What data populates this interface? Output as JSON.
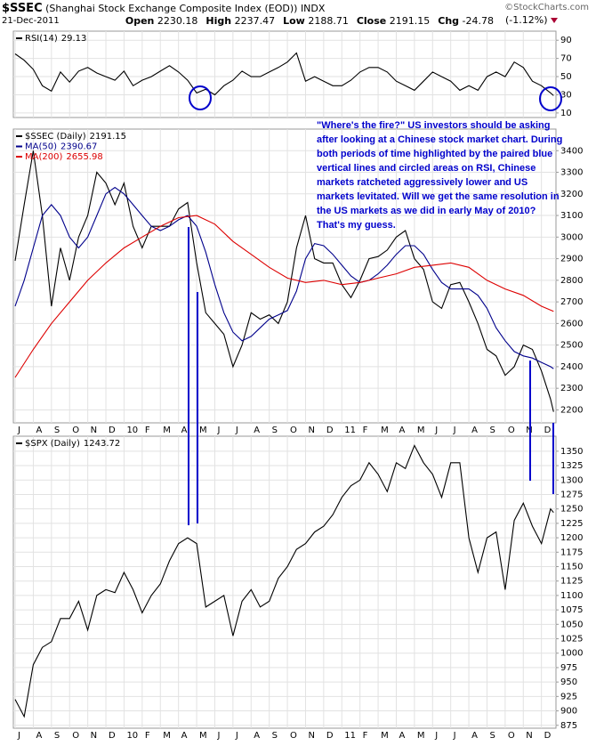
{
  "header": {
    "symbol": "$SSEC",
    "description": "(Shanghai Stock Exchange Composite Index (EOD))",
    "exchange": "INDX",
    "date": "21-Dec-2011",
    "source": "©StockCharts.com",
    "quote": [
      {
        "label": "Open",
        "value": 2230.18
      },
      {
        "label": "High",
        "value": 2237.47
      },
      {
        "label": "Low",
        "value": 2188.71
      },
      {
        "label": "Close",
        "value": 2191.15
      },
      {
        "label": "Chg",
        "value": -24.78
      }
    ],
    "change_percent": "(-1.12%)"
  },
  "chart_data": [
    {
      "type": "line",
      "xlim": [
        -0.1,
        29.8
      ],
      "ylim": [
        5,
        100
      ],
      "yticks": [
        10,
        30,
        50,
        70,
        90
      ],
      "grid": true,
      "x": [
        0,
        0.5,
        1,
        1.5,
        2,
        2.5,
        3,
        3.5,
        4,
        4.5,
        5,
        5.5,
        6,
        6.5,
        7,
        7.5,
        8,
        8.5,
        9,
        9.5,
        10,
        10.5,
        11,
        11.5,
        12,
        12.5,
        13,
        13.5,
        14,
        14.5,
        15,
        15.5,
        16,
        16.5,
        17,
        17.5,
        18,
        18.5,
        19,
        19.5,
        20,
        20.5,
        21,
        21.5,
        22,
        22.5,
        23,
        23.5,
        24,
        24.5,
        25,
        25.5,
        26,
        26.5,
        27,
        27.5,
        28,
        28.5,
        29,
        29.5,
        29.67
      ],
      "series": [
        {
          "name": "RSI(14)",
          "color": "#000000",
          "values": [
            75,
            68,
            58,
            40,
            34,
            55,
            44,
            56,
            60,
            54,
            50,
            46,
            56,
            40,
            46,
            50,
            56,
            62,
            55,
            46,
            32,
            36,
            30,
            40,
            46,
            56,
            50,
            50,
            55,
            60,
            66,
            76,
            45,
            50,
            45,
            40,
            40,
            46,
            55,
            60,
            60,
            55,
            45,
            40,
            35,
            45,
            55,
            50,
            45,
            35,
            40,
            35,
            50,
            55,
            50,
            66,
            60,
            45,
            40,
            32,
            29.13
          ]
        }
      ]
    },
    {
      "type": "line",
      "xlim": [
        -0.1,
        29.8
      ],
      "ylim": [
        2140,
        3500
      ],
      "yticks": [
        2200,
        2300,
        2400,
        2500,
        2600,
        2700,
        2800,
        2900,
        3000,
        3100,
        3200,
        3300,
        3400
      ],
      "grid": true,
      "xticks": [
        {
          "value": 0,
          "label": "J"
        },
        {
          "value": 1,
          "label": "A"
        },
        {
          "value": 2,
          "label": "S"
        },
        {
          "value": 3,
          "label": "O"
        },
        {
          "value": 4,
          "label": "N"
        },
        {
          "value": 5,
          "label": "D"
        },
        {
          "value": 6,
          "label": "10"
        },
        {
          "value": 7,
          "label": "F"
        },
        {
          "value": 8,
          "label": "M"
        },
        {
          "value": 9,
          "label": "A"
        },
        {
          "value": 10,
          "label": "M"
        },
        {
          "value": 11,
          "label": "J"
        },
        {
          "value": 12,
          "label": "J"
        },
        {
          "value": 13,
          "label": "A"
        },
        {
          "value": 14,
          "label": "S"
        },
        {
          "value": 15,
          "label": "O"
        },
        {
          "value": 16,
          "label": "N"
        },
        {
          "value": 17,
          "label": "D"
        },
        {
          "value": 18,
          "label": "11"
        },
        {
          "value": 19,
          "label": "F"
        },
        {
          "value": 20,
          "label": "M"
        },
        {
          "value": 21,
          "label": "A"
        },
        {
          "value": 22,
          "label": "M"
        },
        {
          "value": 23,
          "label": "J"
        },
        {
          "value": 24,
          "label": "J"
        },
        {
          "value": 25,
          "label": "A"
        },
        {
          "value": 26,
          "label": "S"
        },
        {
          "value": 27,
          "label": "O"
        },
        {
          "value": 28,
          "label": "N"
        },
        {
          "value": 29,
          "label": "D"
        }
      ],
      "annotation": "\"Where's the fire?\" US investors should be asking after looking at a Chinese stock market chart. During both periods of time highlighted by the paired blue vertical lines and circled areas on RSI, Chinese markets ratcheted aggressively lower and US markets levitated. Will we get the same resolution in the US markets as we did in early May of 2010? That's my guess.",
      "x": [
        0,
        0.5,
        1,
        1.5,
        2,
        2.5,
        3,
        3.5,
        4,
        4.5,
        5,
        5.5,
        6,
        6.5,
        7,
        7.5,
        8,
        8.5,
        9,
        9.5,
        10,
        10.5,
        11,
        11.5,
        12,
        12.5,
        13,
        13.5,
        14,
        14.5,
        15,
        15.5,
        16,
        16.5,
        17,
        17.5,
        18,
        18.5,
        19,
        19.5,
        20,
        20.5,
        21,
        21.5,
        22,
        22.5,
        23,
        23.5,
        24,
        24.5,
        25,
        25.5,
        26,
        26.5,
        27,
        27.5,
        28,
        28.5,
        29,
        29.5,
        29.67
      ],
      "series": [
        {
          "name": "$SSEC (Daily)",
          "color": "#000000",
          "values": [
            2890,
            3150,
            3400,
            3100,
            2680,
            2950,
            2800,
            3000,
            3100,
            3300,
            3250,
            3150,
            3250,
            3050,
            2950,
            3050,
            3050,
            3050,
            3130,
            3160,
            2880,
            2650,
            2600,
            2550,
            2400,
            2500,
            2650,
            2620,
            2640,
            2600,
            2700,
            2950,
            3100,
            2900,
            2880,
            2880,
            2780,
            2720,
            2800,
            2900,
            2910,
            2940,
            3000,
            3030,
            2900,
            2850,
            2700,
            2670,
            2780,
            2790,
            2700,
            2600,
            2480,
            2450,
            2360,
            2400,
            2500,
            2480,
            2380,
            2250,
            2191.15
          ]
        },
        {
          "name": "MA(50)",
          "color": "#00008b",
          "values": [
            2680,
            2800,
            2950,
            3100,
            3150,
            3100,
            3000,
            2950,
            3000,
            3100,
            3200,
            3230,
            3200,
            3150,
            3100,
            3050,
            3030,
            3050,
            3080,
            3100,
            3050,
            2930,
            2780,
            2650,
            2560,
            2520,
            2540,
            2580,
            2620,
            2640,
            2660,
            2750,
            2900,
            2970,
            2960,
            2920,
            2870,
            2820,
            2790,
            2800,
            2830,
            2870,
            2920,
            2960,
            2960,
            2920,
            2850,
            2790,
            2760,
            2760,
            2760,
            2730,
            2670,
            2580,
            2520,
            2470,
            2450,
            2440,
            2420,
            2400,
            2390.67
          ]
        },
        {
          "name": "MA(200)",
          "color": "#dd0000",
          "x": [
            0,
            1,
            2,
            3,
            4,
            5,
            6,
            7,
            8,
            9,
            10,
            11,
            12,
            13,
            14,
            15,
            16,
            17,
            18,
            19,
            20,
            21,
            22,
            23,
            24,
            25,
            26,
            27,
            28,
            29,
            29.67
          ],
          "values": [
            2350,
            2480,
            2600,
            2700,
            2800,
            2880,
            2950,
            3000,
            3050,
            3090,
            3100,
            3060,
            2980,
            2920,
            2860,
            2810,
            2790,
            2800,
            2780,
            2790,
            2810,
            2830,
            2860,
            2870,
            2880,
            2860,
            2800,
            2760,
            2730,
            2680,
            2655.98
          ]
        }
      ]
    },
    {
      "type": "line",
      "xlim": [
        -0.1,
        29.8
      ],
      "ylim": [
        870,
        1376
      ],
      "yticks": [
        875,
        900,
        925,
        950,
        975,
        1000,
        1025,
        1050,
        1075,
        1100,
        1125,
        1150,
        1175,
        1200,
        1225,
        1250,
        1275,
        1300,
        1325,
        1350
      ],
      "grid": true,
      "xticks": [
        {
          "value": 0,
          "label": "J"
        },
        {
          "value": 1,
          "label": "A"
        },
        {
          "value": 2,
          "label": "S"
        },
        {
          "value": 3,
          "label": "O"
        },
        {
          "value": 4,
          "label": "N"
        },
        {
          "value": 5,
          "label": "D"
        },
        {
          "value": 6,
          "label": "10"
        },
        {
          "value": 7,
          "label": "F"
        },
        {
          "value": 8,
          "label": "M"
        },
        {
          "value": 9,
          "label": "A"
        },
        {
          "value": 10,
          "label": "M"
        },
        {
          "value": 11,
          "label": "J"
        },
        {
          "value": 12,
          "label": "J"
        },
        {
          "value": 13,
          "label": "A"
        },
        {
          "value": 14,
          "label": "S"
        },
        {
          "value": 15,
          "label": "O"
        },
        {
          "value": 16,
          "label": "N"
        },
        {
          "value": 17,
          "label": "D"
        },
        {
          "value": 18,
          "label": "11"
        },
        {
          "value": 19,
          "label": "F"
        },
        {
          "value": 20,
          "label": "M"
        },
        {
          "value": 21,
          "label": "A"
        },
        {
          "value": 22,
          "label": "M"
        },
        {
          "value": 23,
          "label": "J"
        },
        {
          "value": 24,
          "label": "J"
        },
        {
          "value": 25,
          "label": "A"
        },
        {
          "value": 26,
          "label": "S"
        },
        {
          "value": 27,
          "label": "O"
        },
        {
          "value": 28,
          "label": "N"
        },
        {
          "value": 29,
          "label": "D"
        }
      ],
      "x": [
        0,
        0.5,
        1,
        1.5,
        2,
        2.5,
        3,
        3.5,
        4,
        4.5,
        5,
        5.5,
        6,
        6.5,
        7,
        7.5,
        8,
        8.5,
        9,
        9.5,
        10,
        10.5,
        11,
        11.5,
        12,
        12.5,
        13,
        13.5,
        14,
        14.5,
        15,
        15.5,
        16,
        16.5,
        17,
        17.5,
        18,
        18.5,
        19,
        19.5,
        20,
        20.5,
        21,
        21.5,
        22,
        22.5,
        23,
        23.5,
        24,
        24.5,
        25,
        25.5,
        26,
        26.5,
        27,
        27.5,
        28,
        28.5,
        29,
        29.5,
        29.67
      ],
      "series": [
        {
          "name": "$SPX (Daily)",
          "color": "#000000",
          "values": [
            920,
            890,
            980,
            1010,
            1020,
            1060,
            1060,
            1090,
            1040,
            1100,
            1110,
            1105,
            1140,
            1110,
            1070,
            1100,
            1120,
            1160,
            1190,
            1200,
            1190,
            1080,
            1090,
            1100,
            1030,
            1090,
            1110,
            1080,
            1090,
            1130,
            1150,
            1180,
            1190,
            1210,
            1220,
            1240,
            1270,
            1290,
            1300,
            1330,
            1310,
            1280,
            1330,
            1320,
            1360,
            1330,
            1310,
            1270,
            1330,
            1330,
            1200,
            1140,
            1200,
            1210,
            1110,
            1230,
            1260,
            1220,
            1190,
            1250,
            1243.72
          ]
        }
      ]
    }
  ]
}
